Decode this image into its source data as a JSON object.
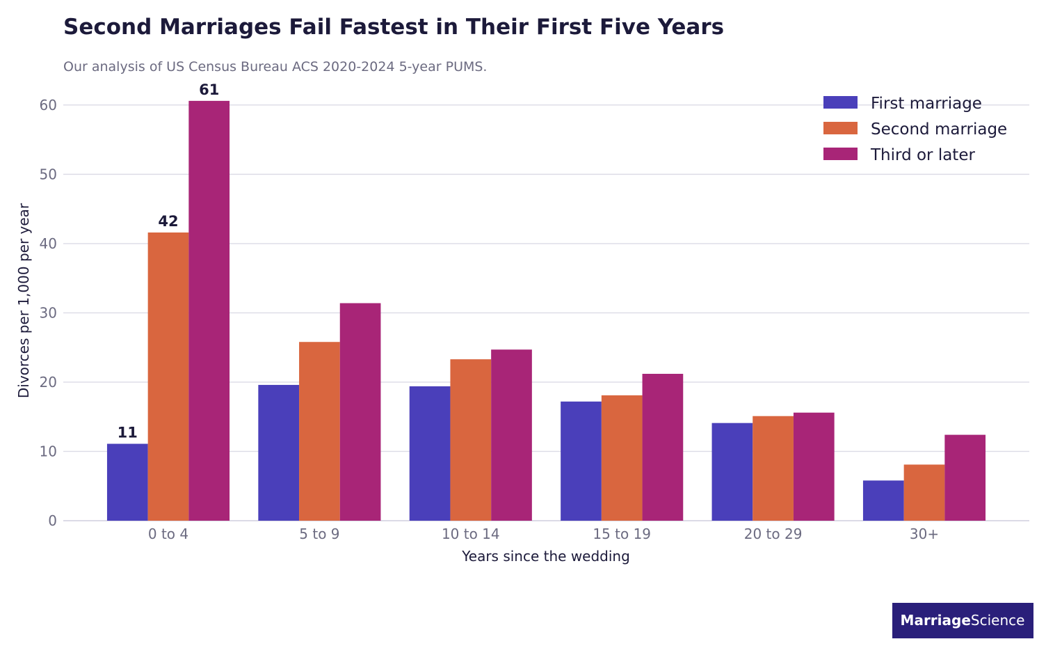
{
  "chart_data": {
    "type": "bar",
    "title": "Second Marriages Fail Fastest in Their First Five Years",
    "subtitle": "Our analysis of US Census Bureau ACS 2020-2024 5-year PUMS.",
    "xlabel": "Years since the wedding",
    "ylabel": "Divorces per 1,000 per year",
    "categories": [
      "0 to 4",
      "5 to 9",
      "10 to 14",
      "15 to 19",
      "20 to 29",
      "30+"
    ],
    "ylim": [
      0,
      63
    ],
    "yticks": [
      0,
      10,
      20,
      30,
      40,
      50,
      60
    ],
    "grid": true,
    "legend_position": "top-right",
    "series": [
      {
        "name": "First marriage",
        "color": "#4a3fba",
        "values": [
          11.1,
          19.6,
          19.4,
          17.2,
          14.1,
          5.8
        ]
      },
      {
        "name": "Second marriage",
        "color": "#d9663f",
        "values": [
          41.6,
          25.8,
          23.3,
          18.1,
          15.1,
          8.1
        ]
      },
      {
        "name": "Third or later",
        "color": "#a82577",
        "values": [
          60.6,
          31.4,
          24.7,
          21.2,
          15.6,
          12.4
        ]
      }
    ],
    "data_labels": [
      {
        "series": 0,
        "category": 0,
        "text": "11"
      },
      {
        "series": 1,
        "category": 0,
        "text": "42"
      },
      {
        "series": 2,
        "category": 0,
        "text": "61"
      }
    ]
  },
  "brand": {
    "bold": "Marriage",
    "light": "Science"
  }
}
